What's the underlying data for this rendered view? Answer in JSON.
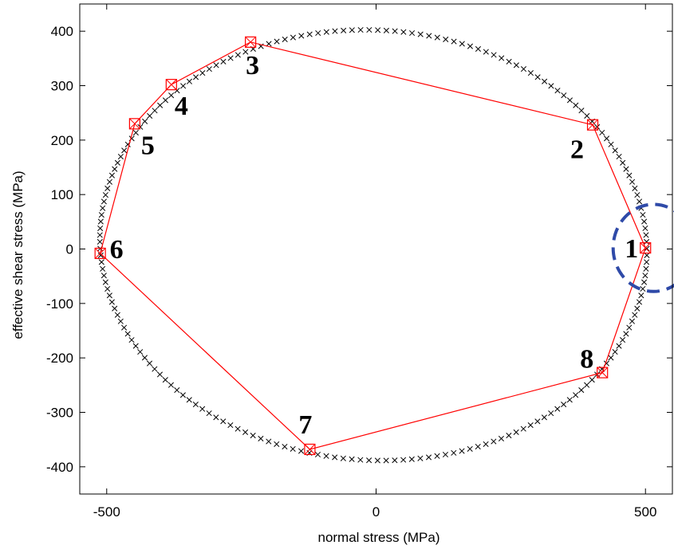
{
  "chart_data": {
    "type": "scatter",
    "title": "",
    "xlabel": "normal stress (MPa)",
    "ylabel": "effective shear stress (MPa)",
    "xlim": [
      -550,
      550
    ],
    "ylim": [
      -450,
      450
    ],
    "xticks": [
      -500,
      0,
      500
    ],
    "yticks": [
      400,
      300,
      200,
      100,
      0,
      -100,
      -200,
      -300,
      -400
    ],
    "grid": false,
    "series": [
      {
        "kind": "ellipse-markers",
        "marker": "x",
        "color": "#000000",
        "center": [
          -5,
          7
        ],
        "semi_axis_x": 508,
        "semi_axis_y": 395,
        "rotation_deg": -3.5,
        "count": 200
      },
      {
        "kind": "polygon",
        "marker": "square",
        "color": "#ff0000",
        "points": [
          {
            "label": "1",
            "x": 500,
            "y": 2
          },
          {
            "label": "2",
            "x": 402,
            "y": 228
          },
          {
            "label": "3",
            "x": -233,
            "y": 380
          },
          {
            "label": "4",
            "x": -380,
            "y": 302
          },
          {
            "label": "5",
            "x": -448,
            "y": 230
          },
          {
            "label": "6",
            "x": -512,
            "y": -8
          },
          {
            "label": "7",
            "x": -123,
            "y": -368
          },
          {
            "label": "8",
            "x": 420,
            "y": -227
          }
        ]
      }
    ],
    "highlight": {
      "kind": "dashed-ellipse",
      "color": "#2f4aa8",
      "center": [
        515,
        2
      ],
      "rx": 75,
      "ry": 80
    }
  }
}
